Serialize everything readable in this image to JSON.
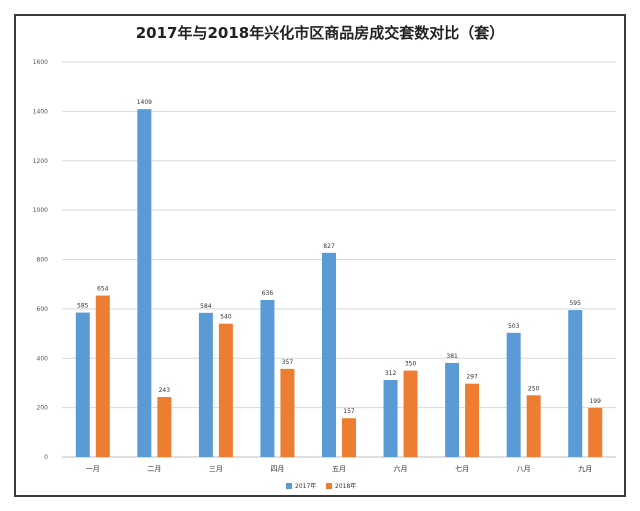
{
  "chart_data": {
    "type": "bar",
    "title": "2017年与2018年兴化市区商品房成交套数对比（套）",
    "categories": [
      "一月",
      "二月",
      "三月",
      "四月",
      "五月",
      "六月",
      "七月",
      "八月",
      "九月"
    ],
    "series": [
      {
        "name": "2017年",
        "color": "#5b9bd5",
        "values": [
          585,
          1409,
          584,
          636,
          827,
          312,
          381,
          503,
          595
        ]
      },
      {
        "name": "2018年",
        "color": "#ed7d31",
        "values": [
          654,
          243,
          540,
          357,
          157,
          350,
          297,
          250,
          199
        ]
      }
    ],
    "y_ticks": [
      "0",
      "200",
      "400",
      "600",
      "800",
      "1000",
      "1200",
      "1400",
      "1600"
    ],
    "ylim": [
      0,
      1600
    ],
    "grid": true,
    "legend": "bottom"
  }
}
